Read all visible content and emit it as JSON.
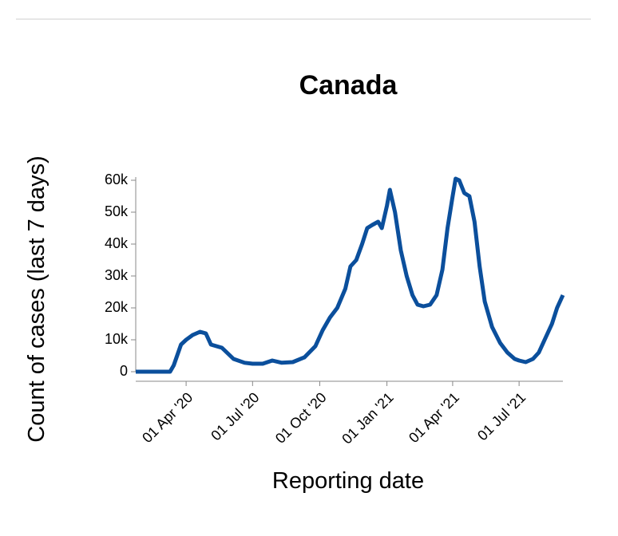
{
  "chart_data": {
    "type": "line",
    "title": "Canada",
    "x_label": "Reporting date",
    "y_label": "Count of cases (last 7 days)",
    "xlim": [
      "2020-01-23",
      "2021-08-30"
    ],
    "xticks": [
      {
        "value": "2020-04-01",
        "label": "01 Apr '20"
      },
      {
        "value": "2020-07-01",
        "label": "01 Jul '20"
      },
      {
        "value": "2020-10-01",
        "label": "01 Oct '20"
      },
      {
        "value": "2021-01-01",
        "label": "01 Jan '21"
      },
      {
        "value": "2021-04-01",
        "label": "01 Apr '21"
      },
      {
        "value": "2021-07-01",
        "label": "01 Jul '21"
      }
    ],
    "ylim": [
      0,
      60000
    ],
    "yticks": [
      0,
      {
        "value": 10000,
        "label": "10k"
      },
      {
        "value": 20000,
        "label": "20k"
      },
      {
        "value": 30000,
        "label": "30k"
      },
      {
        "value": 40000,
        "label": "40k"
      },
      {
        "value": 50000,
        "label": "50k"
      },
      {
        "value": 60000,
        "label": "60k"
      }
    ],
    "grid": false,
    "x": [
      "2020-01-23",
      "2020-03-10",
      "2020-03-15",
      "2020-03-25",
      "2020-04-01",
      "2020-04-10",
      "2020-04-20",
      "2020-04-28",
      "2020-05-05",
      "2020-05-20",
      "2020-06-05",
      "2020-06-20",
      "2020-07-01",
      "2020-07-15",
      "2020-07-28",
      "2020-08-10",
      "2020-08-25",
      "2020-09-10",
      "2020-09-25",
      "2020-10-05",
      "2020-10-15",
      "2020-10-25",
      "2020-11-05",
      "2020-11-12",
      "2020-11-20",
      "2020-11-28",
      "2020-12-05",
      "2020-12-12",
      "2020-12-20",
      "2020-12-25",
      "2021-01-01",
      "2021-01-05",
      "2021-01-12",
      "2021-01-20",
      "2021-01-28",
      "2021-02-05",
      "2021-02-12",
      "2021-02-20",
      "2021-03-01",
      "2021-03-10",
      "2021-03-18",
      "2021-03-25",
      "2021-04-01",
      "2021-04-05",
      "2021-04-10",
      "2021-04-17",
      "2021-04-24",
      "2021-05-01",
      "2021-05-08",
      "2021-05-15",
      "2021-05-25",
      "2021-06-05",
      "2021-06-15",
      "2021-06-25",
      "2021-07-01",
      "2021-07-10",
      "2021-07-20",
      "2021-07-28",
      "2021-08-05",
      "2021-08-15",
      "2021-08-22",
      "2021-08-30"
    ],
    "series": [
      {
        "name": "Canada",
        "color": "#0b4f9c",
        "values": [
          0,
          0,
          2000,
          8500,
          10000,
          11500,
          12500,
          12000,
          8500,
          7500,
          4000,
          2800,
          2500,
          2500,
          3500,
          2800,
          3000,
          4500,
          8000,
          13000,
          17000,
          20000,
          26000,
          33000,
          35000,
          40000,
          45000,
          46000,
          47000,
          45000,
          52000,
          57000,
          50000,
          38000,
          30000,
          24000,
          21000,
          20500,
          21000,
          24000,
          32000,
          45000,
          55000,
          60500,
          60000,
          56000,
          55000,
          47000,
          33000,
          22000,
          14000,
          9000,
          6000,
          4000,
          3500,
          3000,
          4000,
          6000,
          10000,
          15000,
          20000,
          24000
        ]
      }
    ]
  }
}
